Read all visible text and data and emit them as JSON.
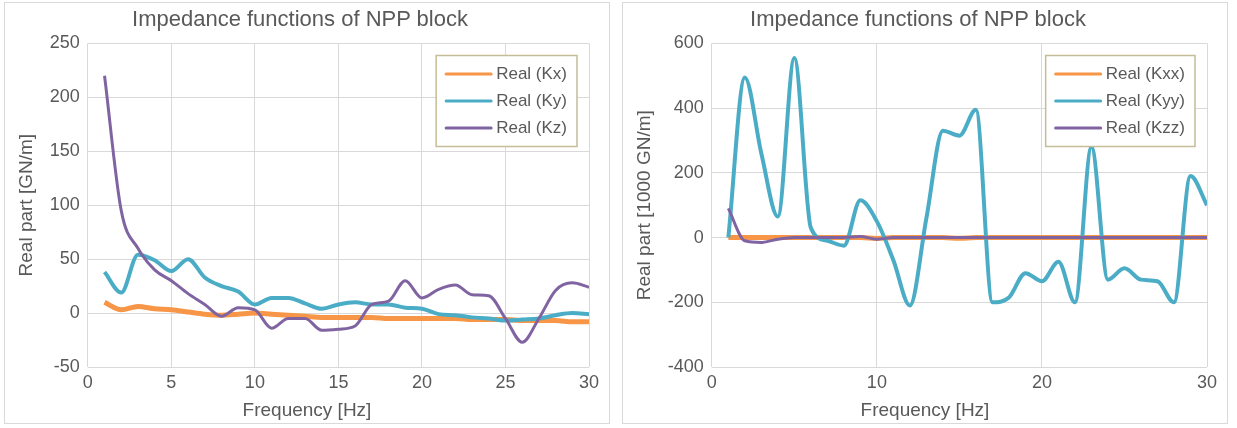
{
  "chart_data": [
    {
      "type": "line",
      "title": "Impedance functions of NPP block",
      "xlabel": "Frequency [Hz]",
      "ylabel": "Real part [GN/m]",
      "x": [
        1,
        2,
        3,
        4,
        5,
        6,
        7,
        8,
        9,
        10,
        11,
        12,
        13,
        14,
        15,
        16,
        17,
        18,
        19,
        20,
        21,
        22,
        23,
        24,
        25,
        26,
        27,
        28,
        29,
        30
      ],
      "series": [
        {
          "name": "Real (Kx)",
          "color": "#f79646",
          "values": [
            10,
            3,
            6,
            4,
            3,
            1,
            -1,
            -2,
            -1,
            0,
            -1,
            -2,
            -3,
            -4,
            -4,
            -4,
            -4,
            -5,
            -5,
            -5,
            -5,
            -5,
            -6,
            -6,
            -6,
            -7,
            -7,
            -7,
            -8,
            -8
          ]
        },
        {
          "name": "Real (Ky)",
          "color": "#4bacc6",
          "values": [
            38,
            19,
            54,
            49,
            39,
            50,
            33,
            25,
            20,
            8,
            14,
            14,
            9,
            4,
            8,
            10,
            8,
            8,
            5,
            4,
            -1,
            -2,
            -4,
            -5,
            -7,
            -6,
            -5,
            -2,
            0,
            -1
          ]
        },
        {
          "name": "Real (Kz)",
          "color": "#8064a2",
          "values": [
            220,
            95,
            60,
            40,
            30,
            18,
            8,
            -3,
            5,
            3,
            -14,
            -5,
            -5,
            -16,
            -15,
            -12,
            8,
            11,
            30,
            14,
            22,
            26,
            17,
            16,
            -5,
            -27,
            -5,
            21,
            28,
            24
          ]
        }
      ],
      "xlim": [
        0,
        30
      ],
      "xticks": [
        0,
        5,
        10,
        15,
        20,
        25,
        30
      ],
      "ylim": [
        -50,
        250
      ],
      "yticks": [
        -50,
        0,
        50,
        100,
        150,
        200,
        250
      ],
      "grid": true,
      "legend": "top right",
      "marker": "none",
      "line_style": "solid"
    },
    {
      "type": "line",
      "title": "Impedance functions of NPP block",
      "xlabel": "Frequency [Hz]",
      "ylabel": "Real part [1000 GN/m]",
      "x": [
        1,
        2,
        3,
        4,
        5,
        6,
        7,
        8,
        9,
        10,
        11,
        12,
        13,
        14,
        15,
        16,
        17,
        18,
        19,
        20,
        21,
        22,
        23,
        24,
        25,
        26,
        27,
        28,
        29,
        30
      ],
      "series": [
        {
          "name": "Real (Kxx)",
          "color": "#f79646",
          "values": [
            0,
            0,
            0,
            0,
            0,
            0,
            0,
            0,
            0,
            -3,
            0,
            0,
            0,
            0,
            -2,
            0,
            0,
            0,
            0,
            0,
            0,
            0,
            0,
            0,
            0,
            0,
            0,
            0,
            0,
            0
          ]
        },
        {
          "name": "Real (Kyy)",
          "color": "#4bacc6",
          "values": [
            0,
            495,
            260,
            65,
            555,
            30,
            -10,
            -25,
            115,
            50,
            -70,
            -210,
            60,
            330,
            315,
            395,
            -200,
            -185,
            -110,
            -135,
            -75,
            -200,
            280,
            -130,
            -95,
            -130,
            -135,
            -200,
            190,
            100
          ]
        },
        {
          "name": "Real (Kzz)",
          "color": "#8064a2",
          "values": [
            90,
            -10,
            -15,
            -5,
            0,
            0,
            0,
            0,
            3,
            -5,
            0,
            0,
            0,
            0,
            0,
            0,
            0,
            0,
            0,
            0,
            0,
            0,
            0,
            0,
            0,
            0,
            0,
            0,
            0,
            0
          ]
        }
      ],
      "xlim": [
        0,
        30
      ],
      "xticks": [
        0,
        10,
        20,
        30
      ],
      "ylim": [
        -400,
        600
      ],
      "yticks": [
        -400,
        -200,
        0,
        200,
        400,
        600
      ],
      "grid": true,
      "legend": "top right",
      "marker": "none",
      "line_style": "solid"
    }
  ]
}
